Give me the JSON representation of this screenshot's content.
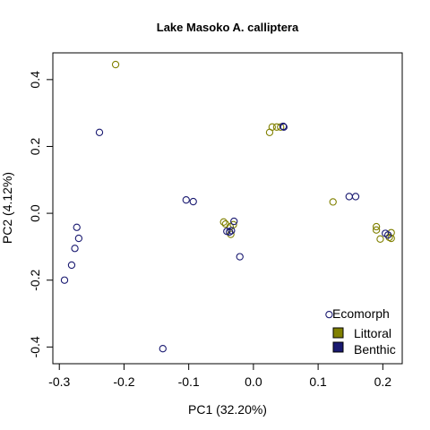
{
  "chart_data": {
    "type": "scatter",
    "title": "Lake Masoko A. calliptera",
    "xlabel": "PC1 (32.20%)",
    "ylabel": "PC2 (4.12%)",
    "xlim": [
      -0.31,
      0.23
    ],
    "ylim": [
      -0.45,
      0.48
    ],
    "xticks": [
      -0.3,
      -0.2,
      -0.1,
      0.0,
      0.1,
      0.2
    ],
    "xtick_labels": [
      "-0.3",
      "-0.2",
      "-0.1",
      "0.0",
      "0.1",
      "0.2"
    ],
    "yticks": [
      -0.4,
      -0.2,
      0.0,
      0.2,
      0.4
    ],
    "ytick_labels": [
      "-0.4",
      "-0.2",
      "0.0",
      "0.2",
      "0.4"
    ],
    "grid": false,
    "legend": {
      "title": "Ecomorph",
      "placement": "bottom-right"
    },
    "series": [
      {
        "name": "Littoral",
        "color": "#808000",
        "points": [
          [
            -0.213,
            0.445
          ],
          [
            0.025,
            0.242
          ],
          [
            0.029,
            0.258
          ],
          [
            0.036,
            0.258
          ],
          [
            0.042,
            0.258
          ],
          [
            -0.046,
            -0.026
          ],
          [
            -0.043,
            -0.032
          ],
          [
            -0.036,
            -0.04
          ],
          [
            -0.031,
            -0.034
          ],
          [
            -0.035,
            -0.063
          ],
          [
            0.123,
            0.034
          ],
          [
            0.19,
            -0.04
          ],
          [
            0.19,
            -0.05
          ],
          [
            0.196,
            -0.077
          ],
          [
            0.21,
            -0.072
          ],
          [
            0.213,
            -0.058
          ],
          [
            0.213,
            -0.075
          ]
        ]
      },
      {
        "name": "Benthic",
        "color": "#191970",
        "points": [
          [
            -0.292,
            -0.2
          ],
          [
            -0.281,
            -0.155
          ],
          [
            -0.276,
            -0.105
          ],
          [
            -0.273,
            -0.042
          ],
          [
            -0.27,
            -0.075
          ],
          [
            -0.238,
            0.242
          ],
          [
            -0.14,
            -0.405
          ],
          [
            -0.104,
            0.04
          ],
          [
            -0.093,
            0.035
          ],
          [
            -0.041,
            -0.054
          ],
          [
            -0.037,
            -0.056
          ],
          [
            -0.034,
            -0.052
          ],
          [
            -0.03,
            -0.024
          ],
          [
            -0.021,
            -0.13
          ],
          [
            0.046,
            0.26
          ],
          [
            0.047,
            0.258
          ],
          [
            0.117,
            -0.303
          ],
          [
            0.148,
            0.05
          ],
          [
            0.158,
            0.05
          ],
          [
            0.204,
            -0.06
          ],
          [
            0.208,
            -0.065
          ]
        ]
      }
    ]
  }
}
